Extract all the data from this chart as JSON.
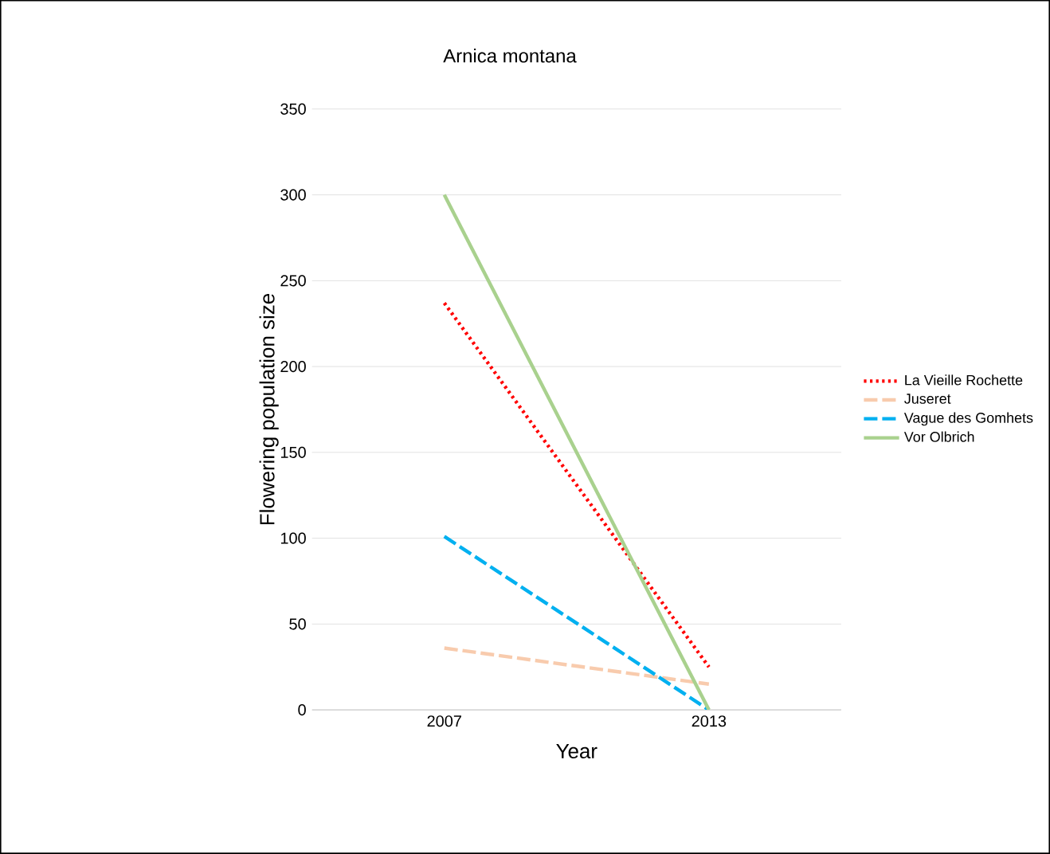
{
  "chart_data": {
    "type": "line",
    "title": "Arnica montana",
    "xlabel": "Year",
    "ylabel": "Flowering population size",
    "categories": [
      "2007",
      "2013"
    ],
    "series": [
      {
        "name": "La Vieille Rochette",
        "color": "#ff0000",
        "line_style": "dotted",
        "values": [
          237,
          25
        ]
      },
      {
        "name": "Juseret",
        "color": "#f8cbad",
        "line_style": "dashed",
        "values": [
          36,
          15
        ]
      },
      {
        "name": "Vague des Gomhets",
        "color": "#00b0f0",
        "line_style": "dashed",
        "values": [
          101,
          0
        ]
      },
      {
        "name": "Vor Olbrich",
        "color": "#a9d18e",
        "line_style": "solid",
        "values": [
          300,
          0
        ]
      }
    ],
    "ylim": [
      0,
      350
    ],
    "yticks": [
      0,
      50,
      100,
      150,
      200,
      250,
      300,
      350
    ],
    "grid": "y",
    "legend": "right",
    "marker": "none"
  }
}
